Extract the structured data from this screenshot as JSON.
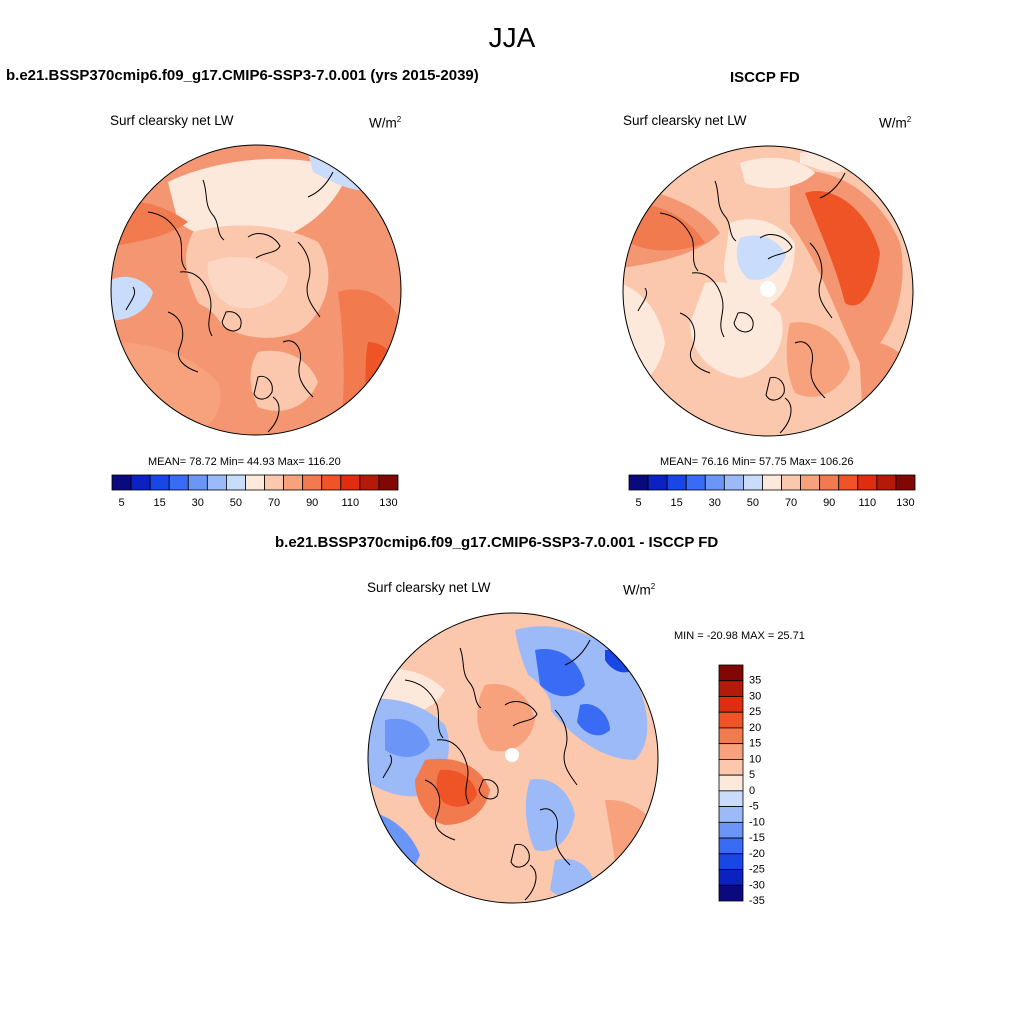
{
  "title": "JJA",
  "panels": [
    {
      "id": "model",
      "title": "b.e21.BSSP370cmip6.f09_g17.CMIP6-SSP3-7.0.001 (yrs 2015-2039)",
      "variable": "Surf clearsky net LW",
      "units_base": "W/m",
      "units_sup": "2",
      "stats": "MEAN=  78.72  Min=  44.93  Max= 116.20"
    },
    {
      "id": "obs",
      "title": "ISCCP FD",
      "variable": "Surf clearsky net LW",
      "units_base": "W/m",
      "units_sup": "2",
      "stats": "MEAN=  76.16  Min=  57.75  Max= 106.26"
    },
    {
      "id": "diff",
      "title": "b.e21.BSSP370cmip6.f09_g17.CMIP6-SSP3-7.0.001 - ISCCP FD",
      "variable": "Surf clearsky net LW",
      "units_base": "W/m",
      "units_sup": "2",
      "stats": "MIN = -20.98 MAX =  25.71"
    }
  ],
  "horizontal_colorbar": {
    "colors": [
      "#0a0a7e",
      "#0b21c2",
      "#1947e6",
      "#3a6bf5",
      "#6b95f7",
      "#9dbaf8",
      "#c9dcfb",
      "#fde9dc",
      "#fbc7ad",
      "#f7a27d",
      "#f27a4f",
      "#ee5426",
      "#df2e0f",
      "#b41a0a",
      "#800704"
    ],
    "labels": [
      "5",
      "15",
      "30",
      "50",
      "70",
      "90",
      "110",
      "130"
    ]
  },
  "vertical_colorbar": {
    "colors": [
      "#800704",
      "#b41a0a",
      "#df2e0f",
      "#ee5426",
      "#f27a4f",
      "#f7a27d",
      "#fbc7ad",
      "#fde9dc",
      "#c9dcfb",
      "#9dbaf8",
      "#6b95f7",
      "#3a6bf5",
      "#1947e6",
      "#0b21c2",
      "#0a0a7e"
    ],
    "labels": [
      "35",
      "30",
      "25",
      "20",
      "15",
      "10",
      "5",
      "0",
      "-5",
      "-10",
      "-15",
      "-20",
      "-25",
      "-30",
      "-35"
    ]
  }
}
